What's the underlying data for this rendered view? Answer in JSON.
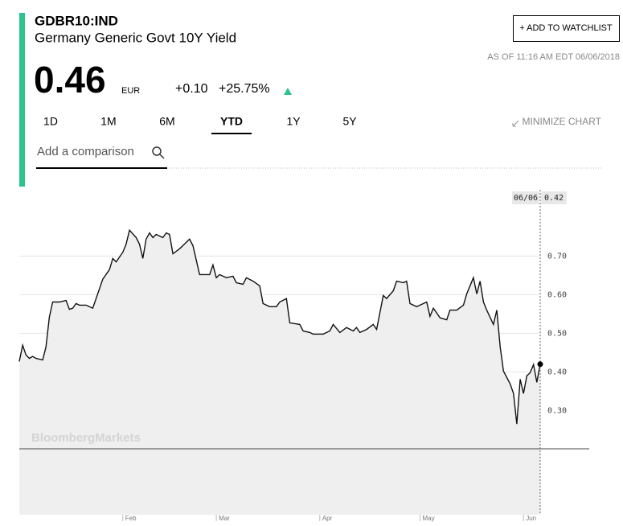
{
  "header": {
    "ticker": "GDBR10:IND",
    "name": "Germany Generic Govt 10Y Yield",
    "watchlist": "+ ADD TO WATCHLIST",
    "as_of": "AS OF 11:16 AM EDT 06/06/2018",
    "price": "0.46",
    "currency": "EUR",
    "change": "+0.10",
    "change_pct": "+25.75%"
  },
  "tabs": {
    "items": [
      "1D",
      "1M",
      "6M",
      "YTD",
      "1Y",
      "5Y"
    ],
    "selected": "YTD",
    "minimize": "MINIMIZE CHART"
  },
  "comparison": {
    "placeholder": "Add a comparison"
  },
  "chart_data": {
    "type": "line",
    "watermark": "BloombergMarkets",
    "crosshair": {
      "date_label": "06/06",
      "value_label": "0.42"
    },
    "color": "#111111",
    "x": [
      1,
      2,
      3,
      4,
      5,
      6,
      8,
      9,
      10,
      11,
      13,
      15,
      16,
      17,
      18,
      19,
      21,
      23,
      25,
      26,
      28,
      29,
      30,
      32,
      33,
      34,
      36,
      37,
      38,
      39,
      40,
      41,
      42,
      44,
      45,
      46,
      47,
      49,
      50,
      52,
      53,
      55,
      58,
      59,
      60,
      61,
      63,
      65,
      66,
      68,
      69,
      71,
      73,
      74,
      76,
      78,
      79,
      81,
      82,
      85,
      86,
      88,
      89,
      92,
      94,
      95,
      97,
      99,
      101,
      102,
      103,
      105,
      107,
      108,
      110,
      111,
      113,
      114,
      116,
      117,
      118,
      120,
      121,
      123,
      124,
      125,
      127,
      129,
      130,
      132,
      134,
      135,
      137,
      138,
      139,
      140,
      141,
      143,
      144,
      145,
      146,
      148,
      149,
      150,
      151,
      152,
      153,
      154,
      155,
      156,
      157
    ],
    "values": [
      0.427,
      0.469,
      0.444,
      0.435,
      0.44,
      0.435,
      0.431,
      0.465,
      0.542,
      0.581,
      0.581,
      0.585,
      0.562,
      0.565,
      0.577,
      0.573,
      0.573,
      0.565,
      0.615,
      0.64,
      0.665,
      0.694,
      0.685,
      0.71,
      0.731,
      0.767,
      0.748,
      0.731,
      0.694,
      0.744,
      0.76,
      0.748,
      0.756,
      0.748,
      0.76,
      0.756,
      0.706,
      0.719,
      0.727,
      0.744,
      0.727,
      0.652,
      0.652,
      0.677,
      0.644,
      0.652,
      0.644,
      0.648,
      0.631,
      0.627,
      0.644,
      0.635,
      0.623,
      0.577,
      0.569,
      0.569,
      0.581,
      0.59,
      0.527,
      0.523,
      0.506,
      0.502,
      0.498,
      0.498,
      0.506,
      0.523,
      0.502,
      0.515,
      0.506,
      0.515,
      0.502,
      0.51,
      0.523,
      0.51,
      0.598,
      0.59,
      0.61,
      0.635,
      0.631,
      0.635,
      0.577,
      0.569,
      0.573,
      0.581,
      0.544,
      0.565,
      0.54,
      0.535,
      0.56,
      0.56,
      0.573,
      0.602,
      0.644,
      0.602,
      0.635,
      0.581,
      0.56,
      0.523,
      0.56,
      0.465,
      0.402,
      0.369,
      0.344,
      0.265,
      0.381,
      0.344,
      0.39,
      0.398,
      0.419,
      0.373,
      0.42
    ],
    "xlim": [
      1,
      157
    ],
    "xticks": [
      {
        "value": 32,
        "label": "Feb"
      },
      {
        "value": 60,
        "label": "Mar"
      },
      {
        "value": 91,
        "label": "Apr"
      },
      {
        "value": 121,
        "label": "May"
      },
      {
        "value": 152,
        "label": "Jun"
      }
    ],
    "ylim": [
      0.03,
      0.88
    ],
    "yticks": [
      {
        "value": 0.7,
        "label": "0.70"
      },
      {
        "value": 0.6,
        "label": "0.60"
      },
      {
        "value": 0.5,
        "label": "0.50"
      },
      {
        "value": 0.4,
        "label": "0.40"
      },
      {
        "value": 0.3,
        "label": "0.30"
      }
    ],
    "grid": true
  }
}
